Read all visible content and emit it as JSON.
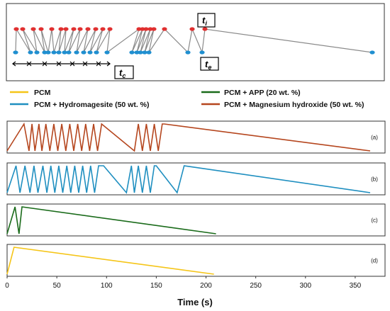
{
  "schematic": {
    "label_ti": "t",
    "label_ti_sub": "i",
    "label_te": "t",
    "label_te_sub": "e",
    "label_tc": "t",
    "label_tc_sub": "c",
    "color_top": "#e03030",
    "color_bottom": "#1f8fd0",
    "color_line": "#8a8a8a"
  },
  "legend": [
    {
      "name": "PCM",
      "color": "#f5c518"
    },
    {
      "name": "PCM + APP (20 wt. %)",
      "color": "#1a6b1a"
    },
    {
      "name": "PCM + Hydromagesite (50 wt. %)",
      "color": "#1f8fc0"
    },
    {
      "name": "PCM + Magnesium hydroxide (50 wt. %)",
      "color": "#b5461e"
    }
  ],
  "chart_data": {
    "type": "line",
    "xlabel": "Time (s)",
    "xlim": [
      0,
      380
    ],
    "xticks": [
      0,
      50,
      100,
      150,
      200,
      250,
      300,
      350
    ],
    "grid": false,
    "panels": [
      {
        "label": "(a)",
        "series": "PCM + Magnesium hydroxide (50 wt. %)",
        "color": "#b5461e",
        "x": [
          0,
          17,
          22,
          25,
          28,
          32,
          35,
          39,
          43,
          47,
          51,
          55,
          59,
          63,
          67,
          71,
          75,
          79,
          83,
          87,
          91,
          95,
          128,
          132,
          136,
          140,
          144,
          148,
          152,
          156,
          158,
          365
        ],
        "y": [
          0,
          1,
          0,
          1,
          0,
          1,
          0,
          1,
          0,
          1,
          0,
          1,
          0,
          1,
          0,
          1,
          0,
          1,
          0,
          1,
          0,
          1,
          0,
          1,
          0,
          1,
          0,
          1,
          0,
          1,
          1,
          0
        ]
      },
      {
        "label": "(b)",
        "series": "PCM + Hydromagesite (50 wt. %)",
        "color": "#1f8fc0",
        "x": [
          0,
          9,
          13,
          18,
          23,
          27,
          31,
          36,
          40,
          44,
          48,
          52,
          56,
          60,
          64,
          68,
          72,
          76,
          80,
          84,
          88,
          92,
          97,
          120,
          125,
          128,
          132,
          136,
          140,
          144,
          148,
          150,
          171,
          178,
          182,
          365
        ],
        "y": [
          0,
          1,
          0,
          1,
          0,
          1,
          0,
          1,
          0,
          1,
          0,
          1,
          0,
          1,
          0,
          1,
          0,
          1,
          0,
          1,
          0,
          1,
          1,
          0,
          1,
          0,
          1,
          0,
          1,
          0,
          1,
          1,
          0,
          1,
          0.98,
          0
        ]
      },
      {
        "label": "(c)",
        "series": "PCM + APP (20 wt. %)",
        "color": "#1a6b1a",
        "x": [
          0,
          8,
          12,
          15,
          210
        ],
        "y": [
          0,
          1,
          0,
          1,
          0
        ]
      },
      {
        "label": "(d)",
        "series": "PCM",
        "color": "#f5c518",
        "x": [
          0,
          7,
          208
        ],
        "y": [
          0,
          1,
          0
        ]
      }
    ]
  }
}
